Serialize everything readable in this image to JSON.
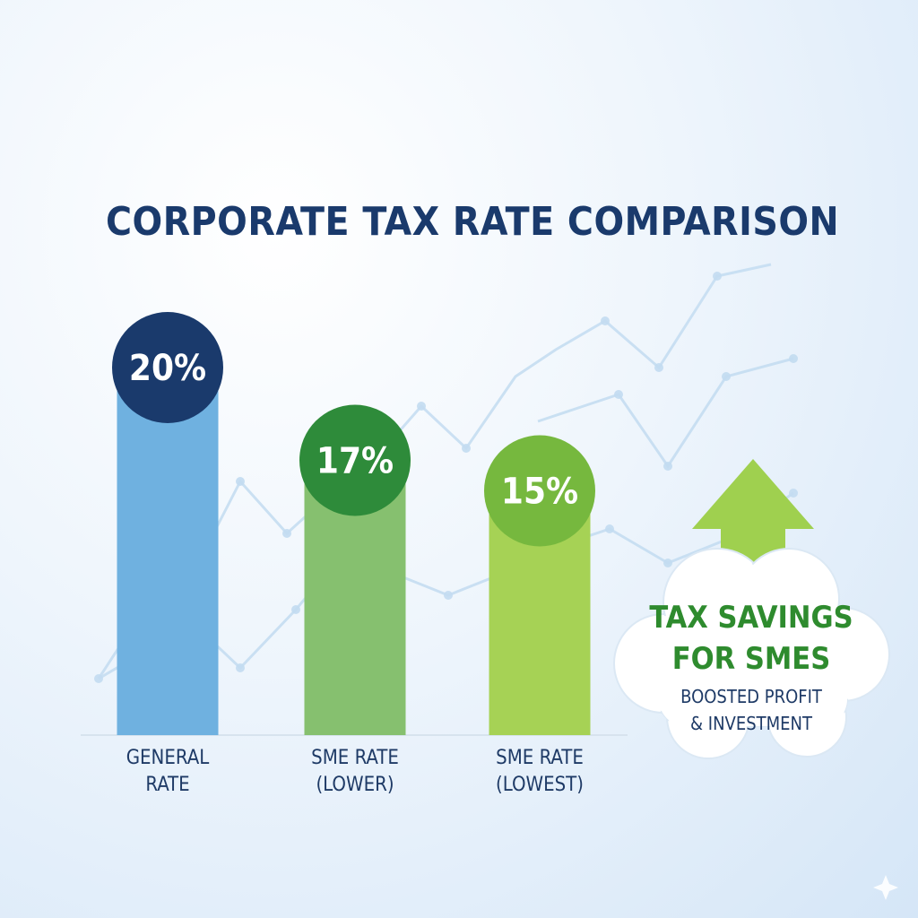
{
  "chart_data": {
    "type": "bar",
    "title": "CORPORATE TAX RATE COMPARISON",
    "categories": [
      [
        "GENERAL",
        "RATE"
      ],
      [
        "SME RATE",
        "(LOWER)"
      ],
      [
        "SME RATE",
        "(LOWEST)"
      ]
    ],
    "values": [
      20,
      17,
      15
    ],
    "value_labels": [
      "20%",
      "17%",
      "15%"
    ],
    "ylim": [
      0,
      22
    ],
    "grid": false,
    "colors": {
      "bars": [
        "#6fb1e0",
        "#86c06f",
        "#a6d255"
      ],
      "bubbles": [
        "#1a3a6c",
        "#2e8b3a",
        "#76b83e"
      ]
    },
    "callout": {
      "title_lines": [
        "TAX SAVINGS",
        "FOR SMES"
      ],
      "subtitle_lines": [
        "BOOSTED PROFIT",
        "& INVESTMENT"
      ],
      "arrow_icon": "up-arrow-icon",
      "arrow_color": "#9fd04f"
    }
  }
}
